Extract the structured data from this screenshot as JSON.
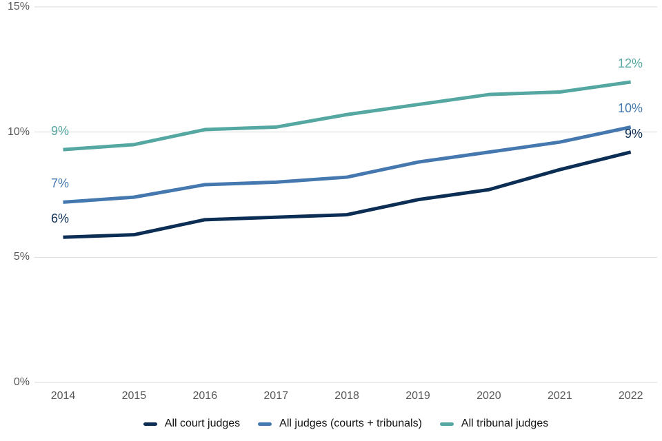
{
  "chart_data": {
    "type": "line",
    "title": "",
    "xlabel": "",
    "ylabel": "",
    "x_labels": [
      "2014",
      "2015",
      "2016",
      "2017",
      "2018",
      "2019",
      "2020",
      "2021",
      "2022"
    ],
    "ylim": [
      0,
      15
    ],
    "y_ticks": [
      {
        "value": 0,
        "label": "0%"
      },
      {
        "value": 5,
        "label": "5%"
      },
      {
        "value": 10,
        "label": "10%"
      },
      {
        "value": 15,
        "label": "15%"
      }
    ],
    "grid": "horizontal",
    "legend_position": "bottom",
    "series": [
      {
        "name": "All court judges",
        "color": "#0c2e54",
        "values": [
          5.8,
          5.9,
          6.5,
          6.6,
          6.7,
          7.3,
          7.7,
          8.5,
          9.2
        ],
        "start_label": "6%",
        "end_label": "9%"
      },
      {
        "name": "All judges (courts + tribunals)",
        "color": "#4478af",
        "values": [
          7.2,
          7.4,
          7.9,
          8.0,
          8.2,
          8.8,
          9.2,
          9.6,
          10.2
        ],
        "start_label": "7%",
        "end_label": "10%"
      },
      {
        "name": "All tribunal judges",
        "color": "#55a7a1",
        "values": [
          9.3,
          9.5,
          10.1,
          10.2,
          10.7,
          11.1,
          11.5,
          11.6,
          12.0
        ],
        "start_label": "9%",
        "end_label": "12%"
      }
    ]
  },
  "colors": {
    "background": "#ffffff",
    "gridline": "#d9d9d9",
    "axis_text": "#595959",
    "legend_text": "#121212"
  }
}
